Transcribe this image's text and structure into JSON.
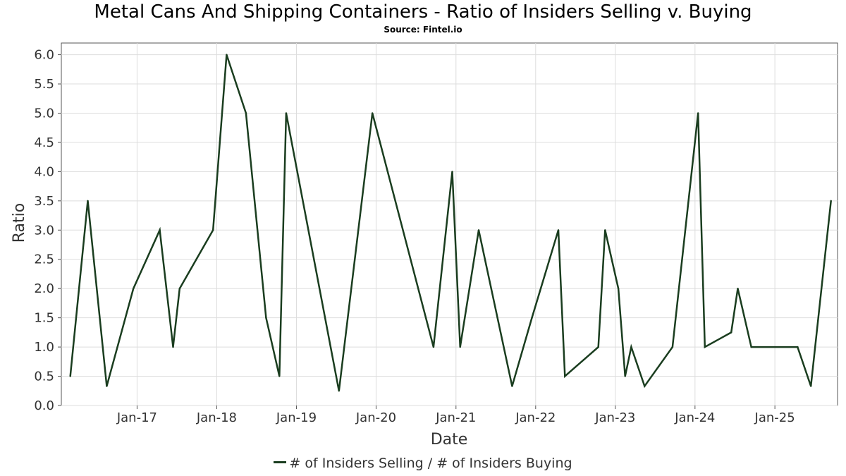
{
  "chart_data": {
    "type": "line",
    "title": "Metal Cans And Shipping Containers - Ratio of Insiders Selling v. Buying",
    "subtitle": "Source: Fintel.io",
    "xlabel": "Date",
    "ylabel": "Ratio",
    "ylim": [
      0,
      6.2
    ],
    "yticks": [
      "0.0",
      "0.5",
      "1.0",
      "1.5",
      "2.0",
      "2.5",
      "3.0",
      "3.5",
      "4.0",
      "4.5",
      "5.0",
      "5.5",
      "6.0"
    ],
    "xticks": [
      {
        "date": "2017-01-01",
        "label": "Jan-17"
      },
      {
        "date": "2018-01-01",
        "label": "Jan-18"
      },
      {
        "date": "2019-01-01",
        "label": "Jan-19"
      },
      {
        "date": "2020-01-01",
        "label": "Jan-20"
      },
      {
        "date": "2021-01-01",
        "label": "Jan-21"
      },
      {
        "date": "2022-01-01",
        "label": "Jan-22"
      },
      {
        "date": "2023-01-01",
        "label": "Jan-23"
      },
      {
        "date": "2024-01-01",
        "label": "Jan-24"
      },
      {
        "date": "2025-01-01",
        "label": "Jan-25"
      }
    ],
    "xlim": [
      "2016-01-20",
      "2025-10-15"
    ],
    "grid": true,
    "legend_position": "bottom-center",
    "line_color": "#1a3d1f",
    "series": [
      {
        "name": "# of Insiders Selling / # of Insiders Buying",
        "points": [
          {
            "x": "2016-03-01",
            "y": 0.5
          },
          {
            "x": "2016-05-20",
            "y": 3.5
          },
          {
            "x": "2016-08-15",
            "y": 0.33
          },
          {
            "x": "2016-12-15",
            "y": 2.0
          },
          {
            "x": "2017-04-15",
            "y": 3.0
          },
          {
            "x": "2017-06-15",
            "y": 1.0
          },
          {
            "x": "2017-07-15",
            "y": 2.0
          },
          {
            "x": "2017-12-15",
            "y": 3.0
          },
          {
            "x": "2018-02-15",
            "y": 6.0
          },
          {
            "x": "2018-05-15",
            "y": 5.0
          },
          {
            "x": "2018-08-15",
            "y": 1.5
          },
          {
            "x": "2018-10-15",
            "y": 0.5
          },
          {
            "x": "2018-11-15",
            "y": 5.0
          },
          {
            "x": "2019-07-15",
            "y": 0.25
          },
          {
            "x": "2019-12-15",
            "y": 5.0
          },
          {
            "x": "2020-09-20",
            "y": 1.0
          },
          {
            "x": "2020-12-15",
            "y": 4.0
          },
          {
            "x": "2021-01-20",
            "y": 1.0
          },
          {
            "x": "2021-04-15",
            "y": 3.0
          },
          {
            "x": "2021-09-15",
            "y": 0.33
          },
          {
            "x": "2021-12-15",
            "y": 1.5
          },
          {
            "x": "2022-04-15",
            "y": 3.0
          },
          {
            "x": "2022-05-15",
            "y": 0.5
          },
          {
            "x": "2022-10-15",
            "y": 1.0
          },
          {
            "x": "2022-11-15",
            "y": 3.0
          },
          {
            "x": "2023-01-15",
            "y": 2.0
          },
          {
            "x": "2023-02-15",
            "y": 0.5
          },
          {
            "x": "2023-03-15",
            "y": 1.0
          },
          {
            "x": "2023-05-15",
            "y": 0.33
          },
          {
            "x": "2023-09-20",
            "y": 1.0
          },
          {
            "x": "2024-01-15",
            "y": 5.0
          },
          {
            "x": "2024-02-15",
            "y": 1.0
          },
          {
            "x": "2024-06-15",
            "y": 1.25
          },
          {
            "x": "2024-07-15",
            "y": 2.0
          },
          {
            "x": "2024-09-15",
            "y": 1.0
          },
          {
            "x": "2025-04-15",
            "y": 1.0
          },
          {
            "x": "2025-06-15",
            "y": 0.33
          },
          {
            "x": "2025-09-15",
            "y": 3.5
          }
        ]
      }
    ]
  }
}
